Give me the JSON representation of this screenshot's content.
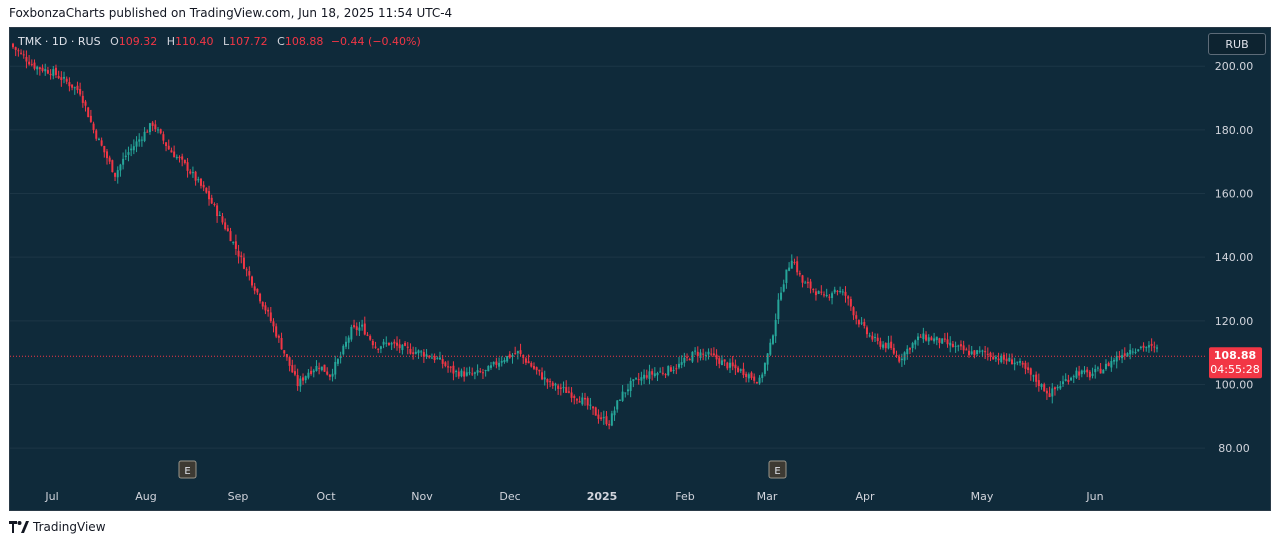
{
  "header": {
    "publisher": "FoxbonzaCharts published on TradingView.com, Jun 18, 2025 11:54 UTC-4"
  },
  "legend": {
    "symbol": "TMK · 1D · RUS",
    "open_label": "O",
    "open": "109.32",
    "high_label": "H",
    "high": "110.40",
    "low_label": "L",
    "low": "107.72",
    "close_label": "C",
    "close": "108.88",
    "change": "−0.44 (−0.40%)"
  },
  "currency_button": "RUB",
  "footer": {
    "brand": "TradingView"
  },
  "colors": {
    "background": "#0f2a3a",
    "up": "#26a69a",
    "down": "#f23645",
    "text": "#d1d4dc"
  },
  "chart_data": {
    "type": "candlestick",
    "y_axis": {
      "ticks": [
        "80.00",
        "100.00",
        "120.00",
        "140.00",
        "160.00",
        "180.00",
        "200.00"
      ],
      "range": [
        70,
        212
      ]
    },
    "x_axis": {
      "labels": [
        "Jul",
        "Aug",
        "Sep",
        "Oct",
        "Nov",
        "Dec",
        "2025",
        "Feb",
        "Mar",
        "Apr",
        "May",
        "Jun"
      ]
    },
    "last_price": {
      "value": 108.88,
      "label": "108.88",
      "countdown": "04:55:28"
    },
    "events": [
      {
        "type": "earnings",
        "label": "E",
        "month": "Aug"
      },
      {
        "type": "earnings",
        "label": "E",
        "month": "Mar"
      }
    ],
    "close_path": [
      [
        0,
        206
      ],
      [
        8,
        200
      ],
      [
        15,
        198
      ],
      [
        25,
        192
      ],
      [
        30,
        180
      ],
      [
        38,
        166
      ],
      [
        42,
        172
      ],
      [
        48,
        178
      ],
      [
        52,
        182
      ],
      [
        58,
        174
      ],
      [
        65,
        168
      ],
      [
        72,
        160
      ],
      [
        80,
        148
      ],
      [
        88,
        134
      ],
      [
        95,
        122
      ],
      [
        102,
        108
      ],
      [
        106,
        100
      ],
      [
        110,
        104
      ],
      [
        114,
        106
      ],
      [
        118,
        103
      ],
      [
        122,
        109
      ],
      [
        126,
        117
      ],
      [
        130,
        118
      ],
      [
        135,
        112
      ],
      [
        140,
        113
      ],
      [
        146,
        111
      ],
      [
        152,
        110
      ],
      [
        158,
        108
      ],
      [
        164,
        104
      ],
      [
        170,
        103
      ],
      [
        176,
        104
      ],
      [
        182,
        108
      ],
      [
        188,
        110
      ],
      [
        194,
        105
      ],
      [
        200,
        100
      ],
      [
        206,
        98
      ],
      [
        212,
        95
      ],
      [
        218,
        90
      ],
      [
        222,
        88
      ],
      [
        226,
        96
      ],
      [
        230,
        100
      ],
      [
        236,
        103
      ],
      [
        242,
        104
      ],
      [
        248,
        106
      ],
      [
        254,
        110
      ],
      [
        260,
        109
      ],
      [
        266,
        106
      ],
      [
        272,
        104
      ],
      [
        278,
        101
      ],
      [
        282,
        112
      ],
      [
        286,
        130
      ],
      [
        290,
        140
      ],
      [
        294,
        132
      ],
      [
        298,
        130
      ],
      [
        302,
        127
      ],
      [
        306,
        130
      ],
      [
        310,
        128
      ],
      [
        314,
        121
      ],
      [
        318,
        116
      ],
      [
        322,
        113
      ],
      [
        326,
        112
      ],
      [
        330,
        108
      ],
      [
        334,
        112
      ],
      [
        338,
        115
      ],
      [
        344,
        114
      ],
      [
        350,
        112
      ],
      [
        356,
        110
      ],
      [
        362,
        110
      ],
      [
        368,
        108
      ],
      [
        374,
        107
      ],
      [
        380,
        102
      ],
      [
        386,
        97
      ],
      [
        390,
        100
      ],
      [
        396,
        104
      ],
      [
        401,
        103
      ],
      [
        406,
        105
      ],
      [
        410,
        108
      ],
      [
        416,
        111
      ],
      [
        421,
        112
      ],
      [
        426,
        111
      ]
    ]
  }
}
